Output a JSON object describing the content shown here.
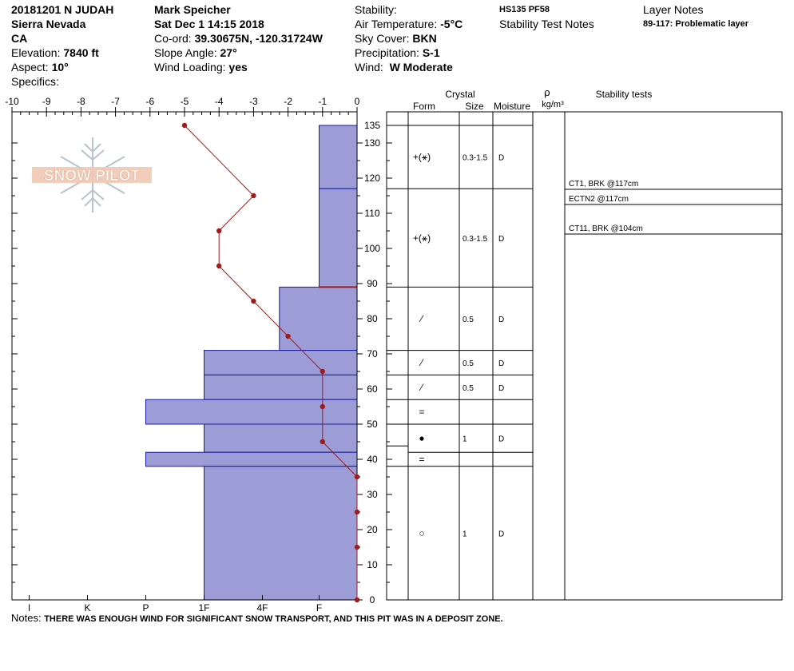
{
  "header": {
    "pit_title": "20181201 N JUDAH",
    "range": "Sierra Nevada",
    "state": "CA",
    "elevation_label": "Elevation:",
    "elevation_value": "7840 ft",
    "aspect_label": "Aspect:",
    "aspect_value": "10°",
    "specifics_label": "Specifics:",
    "observer": "Mark Speicher",
    "datetime": "Sat Dec 1 14:15 2018",
    "coord_label": "Co-ord:",
    "coord_value": "39.30675N, -120.31724W",
    "slope_label": "Slope Angle:",
    "slope_value": "27°",
    "wind_loading_label": "Wind Loading:",
    "wind_loading_value": "yes",
    "stability_label": "Stability:",
    "air_temp_label": "Air Temperature:",
    "air_temp_value": "-5°C",
    "sky_label": "Sky Cover:",
    "sky_value": "BKN",
    "precip_label": "Precipitation:",
    "precip_value": "S-1",
    "wind_label": "Wind:",
    "wind_value": "W Moderate",
    "hs_pf": "HS135  PF58",
    "stability_notes_label": "Stability Test Notes",
    "layer_notes_label": "Layer Notes",
    "layer_note": "89-117: Problematic layer"
  },
  "columns": {
    "crystal": "Crystal",
    "form": "Form",
    "size": "Size",
    "moisture": "Moisture",
    "rho": "ρ",
    "density_unit": "kg/m³",
    "stability_tests": "Stability tests"
  },
  "logo_text": "SNOW PILOT",
  "notes_label": "Notes:",
  "notes_text": "THERE WAS ENOUGH WIND FOR SIGNIFICANT SNOW TRANSPORT, AND THIS PIT WAS IN A DEPOSIT ZONE.",
  "colors": {
    "hardness_fill": "#9c9cd6",
    "hardness_stroke": "#1a1a9c",
    "temp_line": "#a01c1c",
    "grid": "#000000"
  },
  "chart_data": {
    "type": "snow_profile",
    "temperature_axis": {
      "min": -10,
      "max": 0,
      "ticks": [
        "-10",
        "-9",
        "-8",
        "-7",
        "-6",
        "-5",
        "-4",
        "-3",
        "-2",
        "-1",
        "0"
      ]
    },
    "depth_axis": {
      "min": 0,
      "max": 135,
      "ticks": [
        "0",
        "10",
        "20",
        "30",
        "40",
        "50",
        "60",
        "70",
        "80",
        "90",
        "100",
        "110",
        "120",
        "130",
        "135"
      ]
    },
    "hardness_labels": [
      "I",
      "K",
      "P",
      "1F",
      "4F",
      "F"
    ],
    "temperature_profile": [
      {
        "depth": 135,
        "temp": -5
      },
      {
        "depth": 115,
        "temp": -3
      },
      {
        "depth": 105,
        "temp": -4
      },
      {
        "depth": 95,
        "temp": -4
      },
      {
        "depth": 85,
        "temp": -3
      },
      {
        "depth": 75,
        "temp": -2
      },
      {
        "depth": 65,
        "temp": -1
      },
      {
        "depth": 55,
        "temp": -1
      },
      {
        "depth": 45,
        "temp": -1
      },
      {
        "depth": 35,
        "temp": 0
      },
      {
        "depth": 25,
        "temp": 0
      },
      {
        "depth": 15,
        "temp": 0
      },
      {
        "depth": 0,
        "temp": 0
      }
    ],
    "hardness_scale": {
      "F": 1,
      "4F": 2,
      "1F": 3,
      "P": 4,
      "K": 5,
      "I": 6
    },
    "layers": [
      {
        "top": 135,
        "bottom": 117,
        "hardness": "F",
        "form": "+(⚹)",
        "size": "0.3-1.5",
        "moisture": "D"
      },
      {
        "top": 117,
        "bottom": 89,
        "hardness": "F",
        "form": "+(⚹)",
        "size": "0.3-1.5",
        "moisture": "D"
      },
      {
        "top": 89,
        "bottom": 71,
        "hardness": "4F-",
        "hardness_value": 1.7,
        "form": "⁄",
        "size": "0.5",
        "moisture": "D"
      },
      {
        "top": 71,
        "bottom": 64,
        "hardness": "1F",
        "form": "⁄",
        "size": "0.5",
        "moisture": "D"
      },
      {
        "top": 64,
        "bottom": 57,
        "hardness": "1F",
        "form": "⁄",
        "size": "0.5",
        "moisture": "D"
      },
      {
        "top": 57,
        "bottom": 50,
        "hardness": "P",
        "form": "=",
        "size": "",
        "moisture": ""
      },
      {
        "top": 50,
        "bottom": 42,
        "hardness": "1F",
        "form": "●",
        "size": "1",
        "moisture": "D"
      },
      {
        "top": 42,
        "bottom": 38,
        "hardness": "P",
        "form": "=",
        "size": "",
        "moisture": ""
      },
      {
        "top": 38,
        "bottom": 0,
        "hardness": "1F",
        "form": "○",
        "size": "1",
        "moisture": "D"
      }
    ],
    "stability_tests": [
      {
        "text": "CT1, BRK @117cm",
        "depth": 117
      },
      {
        "text": "ECTN2 @117cm",
        "depth": 117
      },
      {
        "text": "CT11, BRK @104cm",
        "depth": 104
      }
    ]
  }
}
